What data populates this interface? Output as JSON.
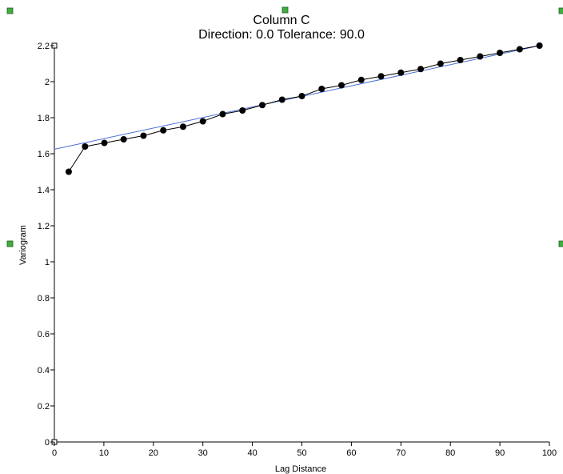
{
  "chart_data": {
    "type": "line",
    "title": "Column C",
    "subtitle": "Direction: 0.0   Tolerance: 90.0",
    "xlabel": "Lag Distance",
    "ylabel": "Variogram",
    "xlim": [
      0,
      100
    ],
    "ylim": [
      0,
      2.2
    ],
    "x_ticks": [
      "0",
      "10",
      "20",
      "30",
      "40",
      "50",
      "60",
      "70",
      "80",
      "90",
      "100"
    ],
    "y_ticks": [
      "0",
      "0.2",
      "0.4",
      "0.6",
      "0.8",
      "1",
      "1.2",
      "1.4",
      "1.6",
      "1.8",
      "2",
      "2.2"
    ],
    "grid": false,
    "series": [
      {
        "kind": "experimental",
        "color": "#000000",
        "x": [
          2.9,
          6.2,
          10.1,
          14,
          18,
          22,
          26,
          30,
          34,
          38,
          42,
          46,
          50,
          54,
          58,
          62,
          66,
          70,
          74,
          78,
          82,
          86,
          90,
          94,
          98
        ],
        "y": [
          1.5,
          1.64,
          1.66,
          1.68,
          1.7,
          1.73,
          1.75,
          1.78,
          1.82,
          1.84,
          1.87,
          1.9,
          1.92,
          1.96,
          1.98,
          2.01,
          2.03,
          2.05,
          2.07,
          2.1,
          2.12,
          2.14,
          2.16,
          2.18,
          2.2
        ]
      },
      {
        "kind": "model",
        "color": "#4a6fd8",
        "x": [
          0,
          98
        ],
        "y": [
          1.625,
          2.2
        ]
      }
    ]
  }
}
